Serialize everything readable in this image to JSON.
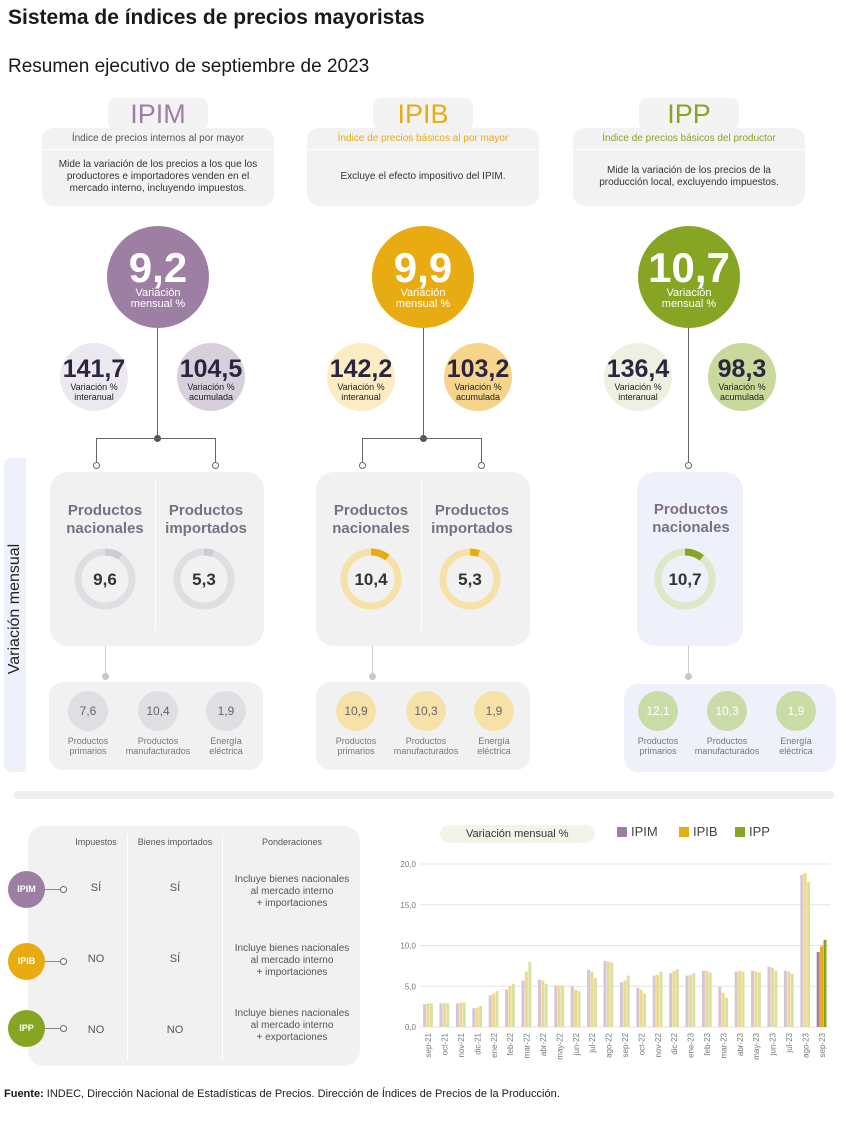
{
  "title": "Sistema de índices de precios mayoristas",
  "subtitle": "Resumen ejecutivo de septiembre de 2023",
  "colors": {
    "ipim": "#9d7fa3",
    "ipib": "#e8ab12",
    "ipp": "#86a623"
  },
  "indices": [
    {
      "key": "ipim",
      "name": "IPIM",
      "long_name": "Índice de precios internos al por mayor",
      "description": "Mide la variación de los precios a los que los productores e importadores venden en el mercado interno, incluyendo impuestos.",
      "monthly": {
        "value": "9,2",
        "label1": "Variación",
        "label2": "mensual %"
      },
      "interannual": {
        "value": "141,7",
        "label1": "Variación %",
        "label2": "interanual"
      },
      "accumulated": {
        "value": "104,5",
        "label1": "Variación %",
        "label2": "acumulada"
      },
      "subgroups": [
        {
          "name1": "Productos",
          "name2": "nacionales",
          "value": "9,6",
          "fill": 0.096
        },
        {
          "name1": "Productos",
          "name2": "importados",
          "value": "5,3",
          "fill": 0.053
        }
      ],
      "components": [
        {
          "value": "7,6",
          "label1": "Productos",
          "label2": "primarios"
        },
        {
          "value": "10,4",
          "label1": "Productos",
          "label2": "manufacturados"
        },
        {
          "value": "1,9",
          "label1": "Energía",
          "label2": "eléctrica"
        }
      ]
    },
    {
      "key": "ipib",
      "name": "IPIB",
      "long_name": "Índice de precios básicos al por mayor",
      "description": "Excluye el efecto impositivo del IPIM.",
      "monthly": {
        "value": "9,9",
        "label1": "Variación",
        "label2": "mensual %"
      },
      "interannual": {
        "value": "142,2",
        "label1": "Variación %",
        "label2": "interanual"
      },
      "accumulated": {
        "value": "103,2",
        "label1": "Variación %",
        "label2": "acumulada"
      },
      "subgroups": [
        {
          "name1": "Productos",
          "name2": "nacionales",
          "value": "10,4",
          "fill": 0.104
        },
        {
          "name1": "Productos",
          "name2": "importados",
          "value": "5,3",
          "fill": 0.053
        }
      ],
      "components": [
        {
          "value": "10,9",
          "label1": "Productos",
          "label2": "primarios"
        },
        {
          "value": "10,3",
          "label1": "Productos",
          "label2": "manufacturados"
        },
        {
          "value": "1,9",
          "label1": "Energía",
          "label2": "eléctrica"
        }
      ]
    },
    {
      "key": "ipp",
      "name": "IPP",
      "long_name": "Índice de precios básicos del productor",
      "description": "Mide la variación de los precios de la producción local, excluyendo impuestos.",
      "monthly": {
        "value": "10,7",
        "label1": "Variación",
        "label2": "mensual %"
      },
      "interannual": {
        "value": "136,4",
        "label1": "Variación %",
        "label2": "interanual"
      },
      "accumulated": {
        "value": "98,3",
        "label1": "Variación %",
        "label2": "acumulada"
      },
      "subgroups": [
        {
          "name1": "Productos",
          "name2": "nacionales",
          "value": "10,7",
          "fill": 0.107
        }
      ],
      "components": [
        {
          "value": "12,1",
          "label1": "Productos",
          "label2": "primarios"
        },
        {
          "value": "10,3",
          "label1": "Productos",
          "label2": "manufacturados"
        },
        {
          "value": "1,9",
          "label1": "Energía",
          "label2": "eléctrica"
        }
      ]
    }
  ],
  "side_label": "Variación mensual",
  "table": {
    "headers": [
      "Impuestos",
      "Bienes importados",
      "Ponderaciones"
    ],
    "rows": [
      {
        "tag": "IPIM",
        "impuestos": "SÍ",
        "importados": "SÍ",
        "pond1": "Incluye bienes nacionales",
        "pond2": "al mercado interno",
        "pond3": "+ importaciones"
      },
      {
        "tag": "IPIB",
        "impuestos": "NO",
        "importados": "SÍ",
        "pond1": "Incluye bienes nacionales",
        "pond2": "al mercado interno",
        "pond3": "+ importaciones"
      },
      {
        "tag": "IPP",
        "impuestos": "NO",
        "importados": "NO",
        "pond1": "Incluye bienes nacionales",
        "pond2": "al mercado interno",
        "pond3": "+ exportaciones"
      }
    ]
  },
  "chart_data": {
    "type": "bar",
    "legend_title": "Variación mensual %",
    "legend": "top-right",
    "categories": [
      "sep-21",
      "oct-21",
      "nov-21",
      "dic-21",
      "ene-22",
      "feb-22",
      "mar-22",
      "abr-22",
      "may-22",
      "jun-22",
      "jul-22",
      "ago-22",
      "sep-22",
      "oct-22",
      "nov-22",
      "dic-22",
      "ene-23",
      "feb-23",
      "mar-23",
      "abr-23",
      "may-23",
      "jun-23",
      "jul-23",
      "ago-23",
      "sep-23"
    ],
    "y_ticks": [
      "0,0",
      "5,0",
      "10,0",
      "15,0",
      "20,0"
    ],
    "ylim": [
      0,
      20
    ],
    "grid": true,
    "series": [
      {
        "name": "IPIM",
        "values": [
          2.8,
          2.9,
          2.9,
          2.3,
          3.9,
          4.6,
          5.7,
          5.8,
          5.1,
          5.0,
          7.0,
          8.1,
          5.5,
          4.8,
          6.3,
          6.6,
          6.3,
          6.9,
          4.9,
          6.8,
          6.9,
          7.4,
          6.9,
          18.7,
          9.2
        ]
      },
      {
        "name": "IPIB",
        "values": [
          2.9,
          2.9,
          3.0,
          2.4,
          4.1,
          5.0,
          6.8,
          5.7,
          5.1,
          4.6,
          6.8,
          8.0,
          5.7,
          4.6,
          6.4,
          6.9,
          6.4,
          6.9,
          4.2,
          6.9,
          6.8,
          7.3,
          6.8,
          18.9,
          9.9
        ]
      },
      {
        "name": "IPP",
        "values": [
          2.9,
          2.9,
          3.0,
          2.6,
          4.4,
          5.3,
          8.0,
          5.3,
          5.1,
          4.4,
          6.0,
          7.9,
          6.3,
          4.1,
          6.8,
          7.1,
          6.6,
          6.7,
          3.6,
          6.8,
          6.7,
          6.9,
          6.5,
          17.8,
          10.7
        ]
      }
    ]
  },
  "source_bold": "Fuente:",
  "source_text": " INDEC, Dirección Nacional de Estadísticas de Precios. Dirección de Índices de Precios de la Producción."
}
